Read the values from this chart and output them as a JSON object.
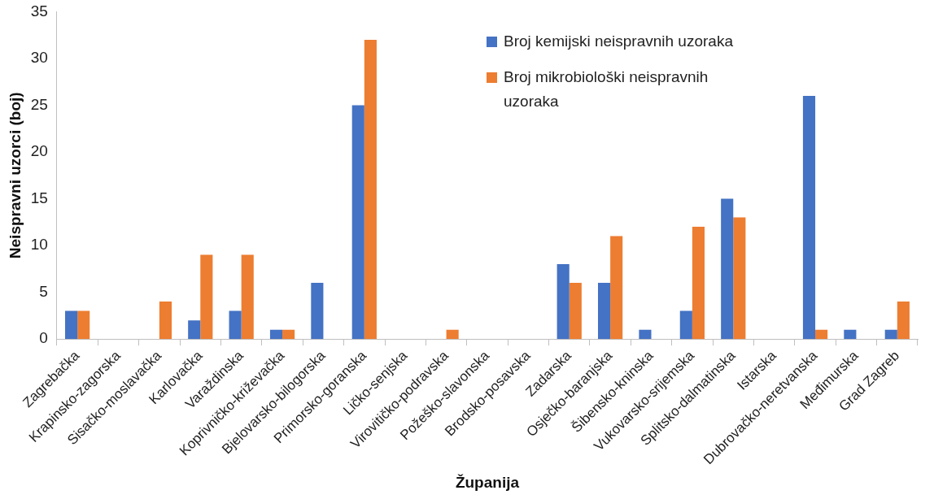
{
  "chart_data": {
    "type": "bar",
    "xlabel": "Županija",
    "ylabel": "Neispravni uzorci (boj)",
    "categories": [
      "Zagrebačka",
      "Krapinsko-zagorska",
      "Sisačko-moslavačka",
      "Karlovačka",
      "Varaždinska",
      "Koprivničko-križevačka",
      "Bjelovarsko-bilogorska",
      "Primorsko-goranska",
      "Ličko-senjska",
      "Virovitičko-podravska",
      "Požeško-slavonska",
      "Brodsko-posavska",
      "Zadarska",
      "Osječko-baranjska",
      "Šibensko-kninska",
      "Vukovarsko-srijemska",
      "Splitsko-dalmatinska",
      "Istarska",
      "Dubrovačko-neretvanska",
      "Međimurska",
      "Grad Zagreb"
    ],
    "series": [
      {
        "name": "Broj kemijski neispravnih uzoraka",
        "color": "#4472c4",
        "values": [
          3,
          0,
          0,
          2,
          3,
          1,
          6,
          25,
          0,
          0,
          0,
          0,
          8,
          6,
          1,
          3,
          15,
          0,
          26,
          1,
          1
        ]
      },
      {
        "name": "Broj mikrobiološki neispravnih uzoraka",
        "color": "#ed7d31",
        "values": [
          3,
          0,
          4,
          9,
          9,
          1,
          0,
          32,
          0,
          1,
          0,
          0,
          6,
          11,
          0,
          12,
          13,
          0,
          1,
          0,
          4
        ]
      }
    ],
    "ylim": [
      0,
      35
    ],
    "yticks": [
      0,
      5,
      10,
      15,
      20,
      25,
      30,
      35
    ],
    "grid": false,
    "legend": "top right"
  }
}
